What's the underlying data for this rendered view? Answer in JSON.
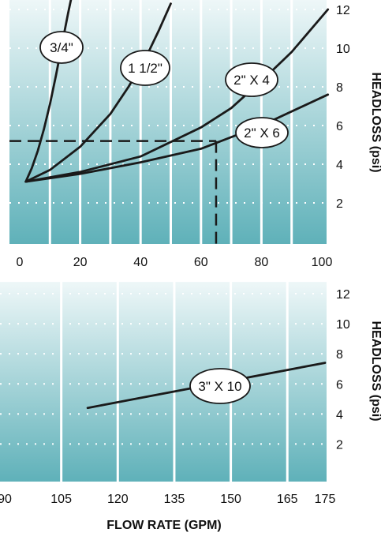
{
  "colors": {
    "panel_top": "#eef7f8",
    "panel_bottom": "#5fb1b9",
    "grid": "#ffffff",
    "line": "#1a1a1a"
  },
  "chart_data": [
    {
      "type": "line",
      "title": "",
      "xlabel": "",
      "ylabel": "HEADLOSS (psi)",
      "xlim": [
        0,
        100
      ],
      "ylim": [
        0,
        12
      ],
      "x_ticks": [
        "0",
        "20",
        "40",
        "60",
        "80",
        "100"
      ],
      "y_ticks": [
        "2",
        "4",
        "6",
        "8",
        "10",
        "12"
      ],
      "grid": true,
      "series": [
        {
          "name": "3/4\"",
          "x": [
            2,
            4,
            6,
            8,
            10,
            12,
            14,
            16,
            17.5
          ],
          "y": [
            3.1,
            3.8,
            4.7,
            5.8,
            7.1,
            8.6,
            10.2,
            11.8,
            12.9
          ]
        },
        {
          "name": "1 1/2\"",
          "x": [
            2,
            10,
            20,
            30,
            36,
            42,
            46,
            50
          ],
          "y": [
            3.1,
            3.7,
            4.9,
            6.6,
            8.0,
            9.6,
            10.9,
            12.3
          ]
        },
        {
          "name": "2\" X 4",
          "x": [
            2,
            20,
            40,
            60,
            70,
            80,
            90,
            102
          ],
          "y": [
            3.1,
            3.6,
            4.4,
            5.9,
            6.9,
            8.3,
            9.8,
            12.0
          ]
        },
        {
          "name": "2\" X 6",
          "x": [
            2,
            20,
            40,
            60,
            80,
            102
          ],
          "y": [
            3.1,
            3.5,
            4.1,
            4.8,
            6.0,
            7.6
          ]
        }
      ],
      "reference_point": {
        "x": 65,
        "y": 5.2
      },
      "series_labels": [
        "3/4\"",
        "1 1/2\"",
        "2\" X 4",
        "2\" X 6"
      ]
    },
    {
      "type": "line",
      "title": "",
      "xlabel": "FLOW RATE (GPM)",
      "ylabel": "HEADLOSS (psi)",
      "xlim": [
        90,
        175
      ],
      "ylim": [
        0,
        12
      ],
      "x_ticks": [
        "90",
        "105",
        "120",
        "135",
        "150",
        "165",
        "175"
      ],
      "y_ticks": [
        "2",
        "4",
        "6",
        "8",
        "10",
        "12"
      ],
      "grid": true,
      "series": [
        {
          "name": "3\" X 10",
          "x": [
            112,
            175
          ],
          "y": [
            4.4,
            7.4
          ]
        }
      ],
      "series_labels": [
        "3\" X 10"
      ]
    }
  ]
}
